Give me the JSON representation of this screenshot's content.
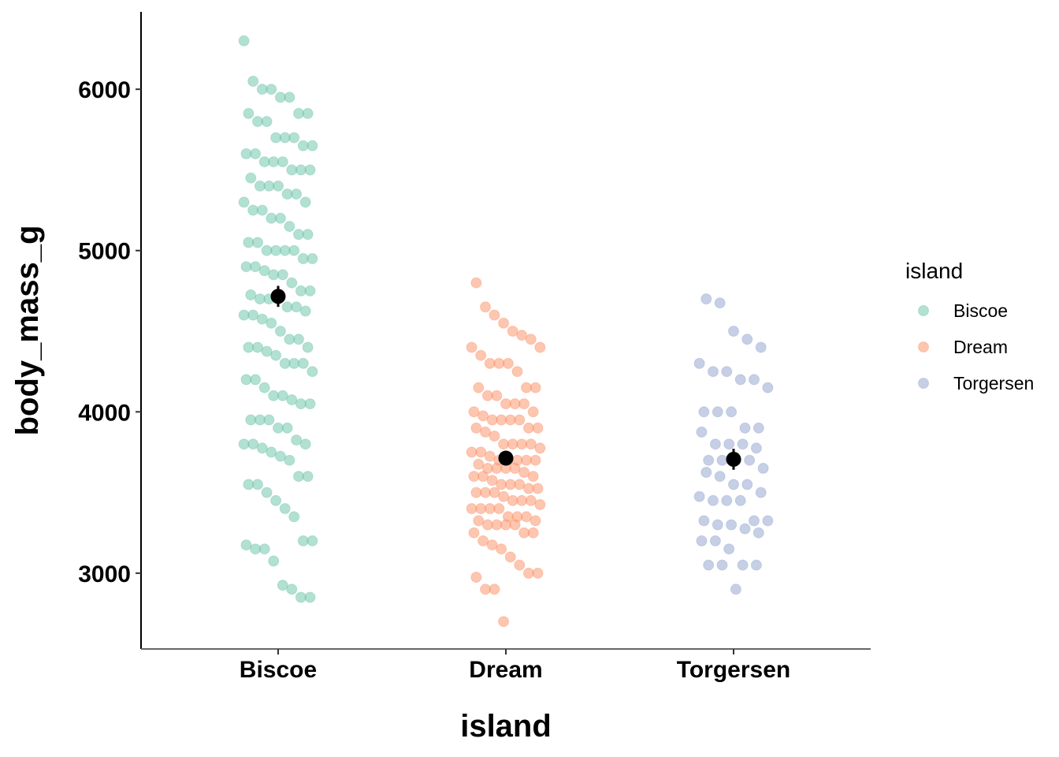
{
  "chart_data": {
    "type": "scatter",
    "subtype": "jitter-strip-with-mean-and-error-bar",
    "title": "",
    "xlabel": "island",
    "ylabel": "body_mass_g",
    "categories": [
      "Biscoe",
      "Dream",
      "Torgersen"
    ],
    "ylim": [
      2530,
      6480
    ],
    "yticks": [
      3000,
      4000,
      5000,
      6000
    ],
    "grid": false,
    "legend": {
      "title": "island",
      "placement": "right",
      "entries": [
        "Biscoe",
        "Dream",
        "Torgersen"
      ]
    },
    "colors": {
      "Biscoe": "#66C2A5",
      "Dream": "#FC8D62",
      "Torgersen": "#8DA0CB",
      "summary": "#000000"
    },
    "point_alpha": 0.5,
    "series": [
      {
        "name": "Biscoe",
        "jitter": [
          -0.15,
          -0.11,
          -0.07,
          -0.03,
          0.01,
          0.05,
          0.09,
          0.13,
          -0.13,
          -0.09,
          -0.05,
          -0.01,
          0.03,
          0.07,
          0.11,
          0.15,
          -0.14,
          -0.1,
          -0.06,
          -0.02,
          0.02,
          0.06,
          0.1,
          0.14,
          -0.12,
          -0.08,
          -0.04,
          0.0,
          0.04,
          0.08,
          0.12
        ],
        "values": [
          6300,
          6050,
          6000,
          6000,
          5950,
          5950,
          5850,
          5850,
          5850,
          5800,
          5800,
          5700,
          5700,
          5700,
          5650,
          5650,
          5600,
          5600,
          5550,
          5550,
          5550,
          5500,
          5500,
          5500,
          5450,
          5400,
          5400,
          5400,
          5350,
          5350,
          5300,
          5300,
          5250,
          5250,
          5200,
          5200,
          5150,
          5100,
          5100,
          5050,
          5050,
          5000,
          5000,
          5000,
          5000,
          4950,
          4950,
          4900,
          4900,
          4875,
          4850,
          4850,
          4800,
          4750,
          4750,
          4725,
          4700,
          4700,
          4700,
          4650,
          4650,
          4625,
          4600,
          4600,
          4575,
          4550,
          4500,
          4450,
          4450,
          4400,
          4400,
          4400,
          4375,
          4350,
          4300,
          4300,
          4300,
          4250,
          4200,
          4200,
          4150,
          4100,
          4100,
          4075,
          4050,
          4050,
          3950,
          3950,
          3950,
          3900,
          3900,
          3825,
          3800,
          3800,
          3800,
          3775,
          3750,
          3725,
          3700,
          3600,
          3600,
          3550,
          3550,
          3500,
          3450,
          3400,
          3350,
          3200,
          3200,
          3175,
          3150,
          3150,
          3075,
          2925,
          2900,
          2850,
          2850
        ]
      },
      {
        "name": "Dream",
        "jitter": [
          -0.13,
          -0.09,
          -0.05,
          -0.01,
          0.03,
          0.07,
          0.11,
          0.15,
          -0.15,
          -0.11,
          -0.07,
          -0.03,
          0.01,
          0.05,
          0.09,
          0.13,
          -0.12,
          -0.08,
          -0.04,
          0.0,
          0.04,
          0.08,
          0.12,
          -0.14,
          -0.1,
          -0.06,
          -0.02,
          0.02,
          0.06,
          0.1,
          0.14
        ],
        "values": [
          4800,
          4650,
          4600,
          4550,
          4500,
          4475,
          4450,
          4400,
          4400,
          4350,
          4300,
          4300,
          4300,
          4250,
          4150,
          4150,
          4150,
          4100,
          4100,
          4050,
          4050,
          4050,
          4000,
          4000,
          3975,
          3950,
          3950,
          3950,
          3950,
          3900,
          3900,
          3900,
          3875,
          3850,
          3800,
          3800,
          3800,
          3800,
          3775,
          3750,
          3750,
          3725,
          3700,
          3700,
          3700,
          3700,
          3700,
          3675,
          3650,
          3650,
          3650,
          3650,
          3625,
          3600,
          3600,
          3600,
          3575,
          3550,
          3550,
          3550,
          3525,
          3525,
          3500,
          3500,
          3500,
          3475,
          3450,
          3450,
          3450,
          3425,
          3400,
          3400,
          3400,
          3400,
          3350,
          3350,
          3350,
          3325,
          3325,
          3300,
          3300,
          3300,
          3300,
          3250,
          3250,
          3250,
          3200,
          3175,
          3150,
          3100,
          3050,
          3000,
          3000,
          2975,
          2900,
          2900,
          2700
        ]
      },
      {
        "name": "Torgersen",
        "jitter": [
          -0.12,
          -0.06,
          0.0,
          0.06,
          0.12,
          -0.15,
          -0.09,
          -0.03,
          0.03,
          0.09,
          0.15,
          -0.13,
          -0.07,
          -0.01,
          0.05,
          0.11,
          -0.14,
          -0.08,
          -0.02,
          0.04,
          0.1,
          -0.11,
          -0.05,
          0.01,
          0.07,
          0.13
        ],
        "values": [
          4700,
          4675,
          4500,
          4450,
          4400,
          4300,
          4250,
          4250,
          4200,
          4200,
          4150,
          4000,
          4000,
          4000,
          3900,
          3900,
          3875,
          3800,
          3800,
          3800,
          3775,
          3700,
          3700,
          3700,
          3700,
          3650,
          3625,
          3600,
          3550,
          3550,
          3500,
          3475,
          3450,
          3450,
          3450,
          3325,
          3325,
          3325,
          3300,
          3300,
          3275,
          3250,
          3200,
          3200,
          3150,
          3050,
          3050,
          3050,
          3050,
          2900
        ]
      }
    ],
    "summary": [
      {
        "name": "Biscoe",
        "mean": 4716,
        "low": 4651,
        "high": 4781
      },
      {
        "name": "Dream",
        "mean": 3713,
        "low": 3675,
        "high": 3751
      },
      {
        "name": "Torgersen",
        "mean": 3706,
        "low": 3641,
        "high": 3771
      }
    ]
  }
}
